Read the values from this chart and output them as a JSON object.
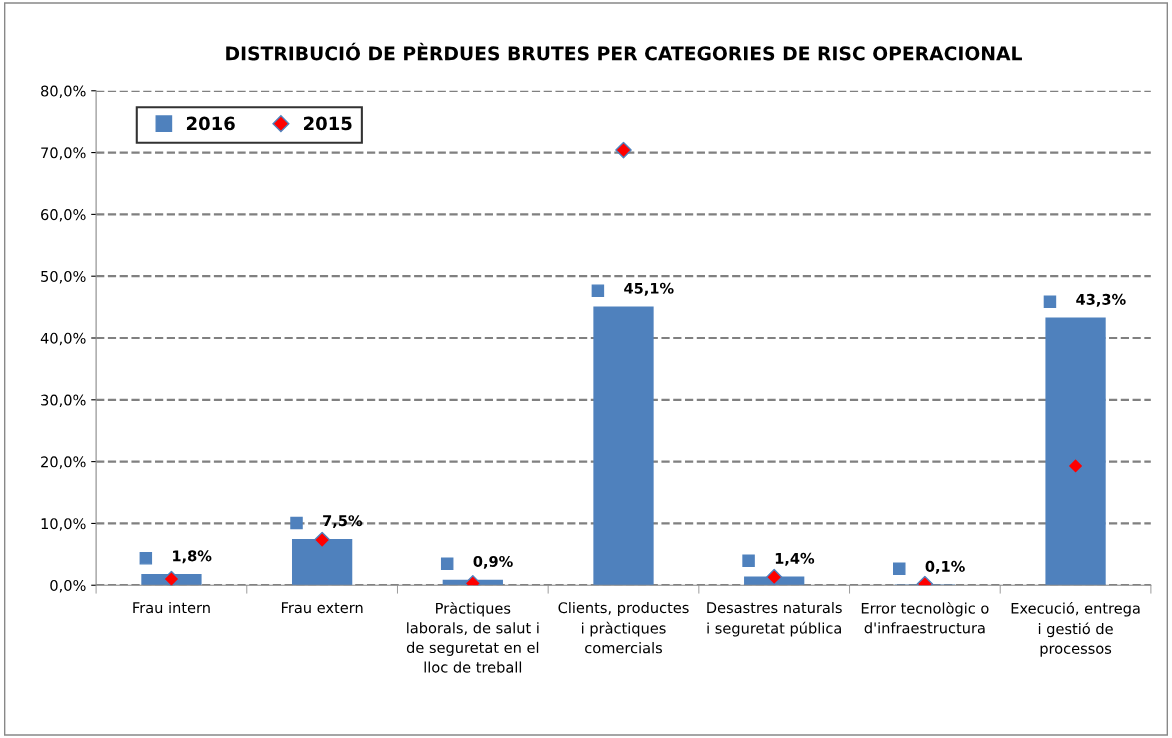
{
  "chart_data": {
    "type": "bar",
    "title": "DISTRIBUCIÓ DE PÈRDUES BRUTES PER CATEGORIES DE RISC OPERACIONAL",
    "categories": [
      "Frau intern",
      "Frau extern",
      "Pràctiques laborals, de salut i de seguretat en el lloc de treball",
      "Clients, productes i pràctiques comercials",
      "Desastres naturals i seguretat pública",
      "Error tecnològic o d'infraestructura",
      "Execució, entrega i gestió de processos"
    ],
    "series": [
      {
        "name": "2016",
        "color": "#4f81bd",
        "values": [
          1.8,
          7.5,
          0.9,
          45.1,
          1.4,
          0.1,
          43.3
        ],
        "value_labels": [
          "1,8%",
          "7,5%",
          "0,9%",
          "45,1%",
          "1,4%",
          "0,1%",
          "43,3%"
        ]
      },
      {
        "name": "2015",
        "type": "scatter",
        "color": "#ff0000",
        "marker": "diamond",
        "values": [
          1.0,
          7.3,
          0.3,
          70.4,
          1.3,
          0.2,
          19.3
        ]
      }
    ],
    "ylim": [
      0,
      80
    ],
    "yticks": [
      {
        "value": 0,
        "label": "0,0%"
      },
      {
        "value": 10,
        "label": "10,0%"
      },
      {
        "value": 20,
        "label": "20,0%"
      },
      {
        "value": 30,
        "label": "30,0%"
      },
      {
        "value": 40,
        "label": "40,0%"
      },
      {
        "value": 50,
        "label": "50,0%"
      },
      {
        "value": 60,
        "label": "60,0%"
      },
      {
        "value": 70,
        "label": "70,0%"
      },
      {
        "value": 80,
        "label": "80,0%"
      }
    ],
    "grid": "y",
    "legend": "top left"
  }
}
